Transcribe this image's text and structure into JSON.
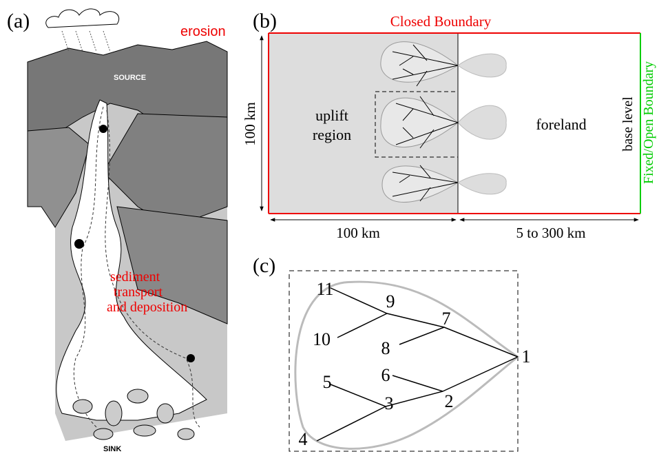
{
  "panel_a": {
    "label": "(a)",
    "erosion": "erosion",
    "source": "SOURCE",
    "transport_lines": [
      "sediment",
      "transport",
      "and deposition"
    ],
    "sink": "SINK"
  },
  "panel_b": {
    "label": "(b)",
    "top_boundary": "Closed Boundary",
    "height": "100 km",
    "uplift_lines": [
      "uplift",
      "region"
    ],
    "foreland": "foreland",
    "base_level": "base level",
    "right_boundary": "Fixed/Open Boundary",
    "uplift_width": "100 km",
    "foreland_width": "5 to 300 km"
  },
  "panel_c": {
    "label": "(c)",
    "nodes": [
      {
        "label": "1"
      },
      {
        "label": "2"
      },
      {
        "label": "3"
      },
      {
        "label": "4"
      },
      {
        "label": "5"
      },
      {
        "label": "6"
      },
      {
        "label": "7"
      },
      {
        "label": "8"
      },
      {
        "label": "9"
      },
      {
        "label": "10"
      },
      {
        "label": "11"
      }
    ]
  }
}
